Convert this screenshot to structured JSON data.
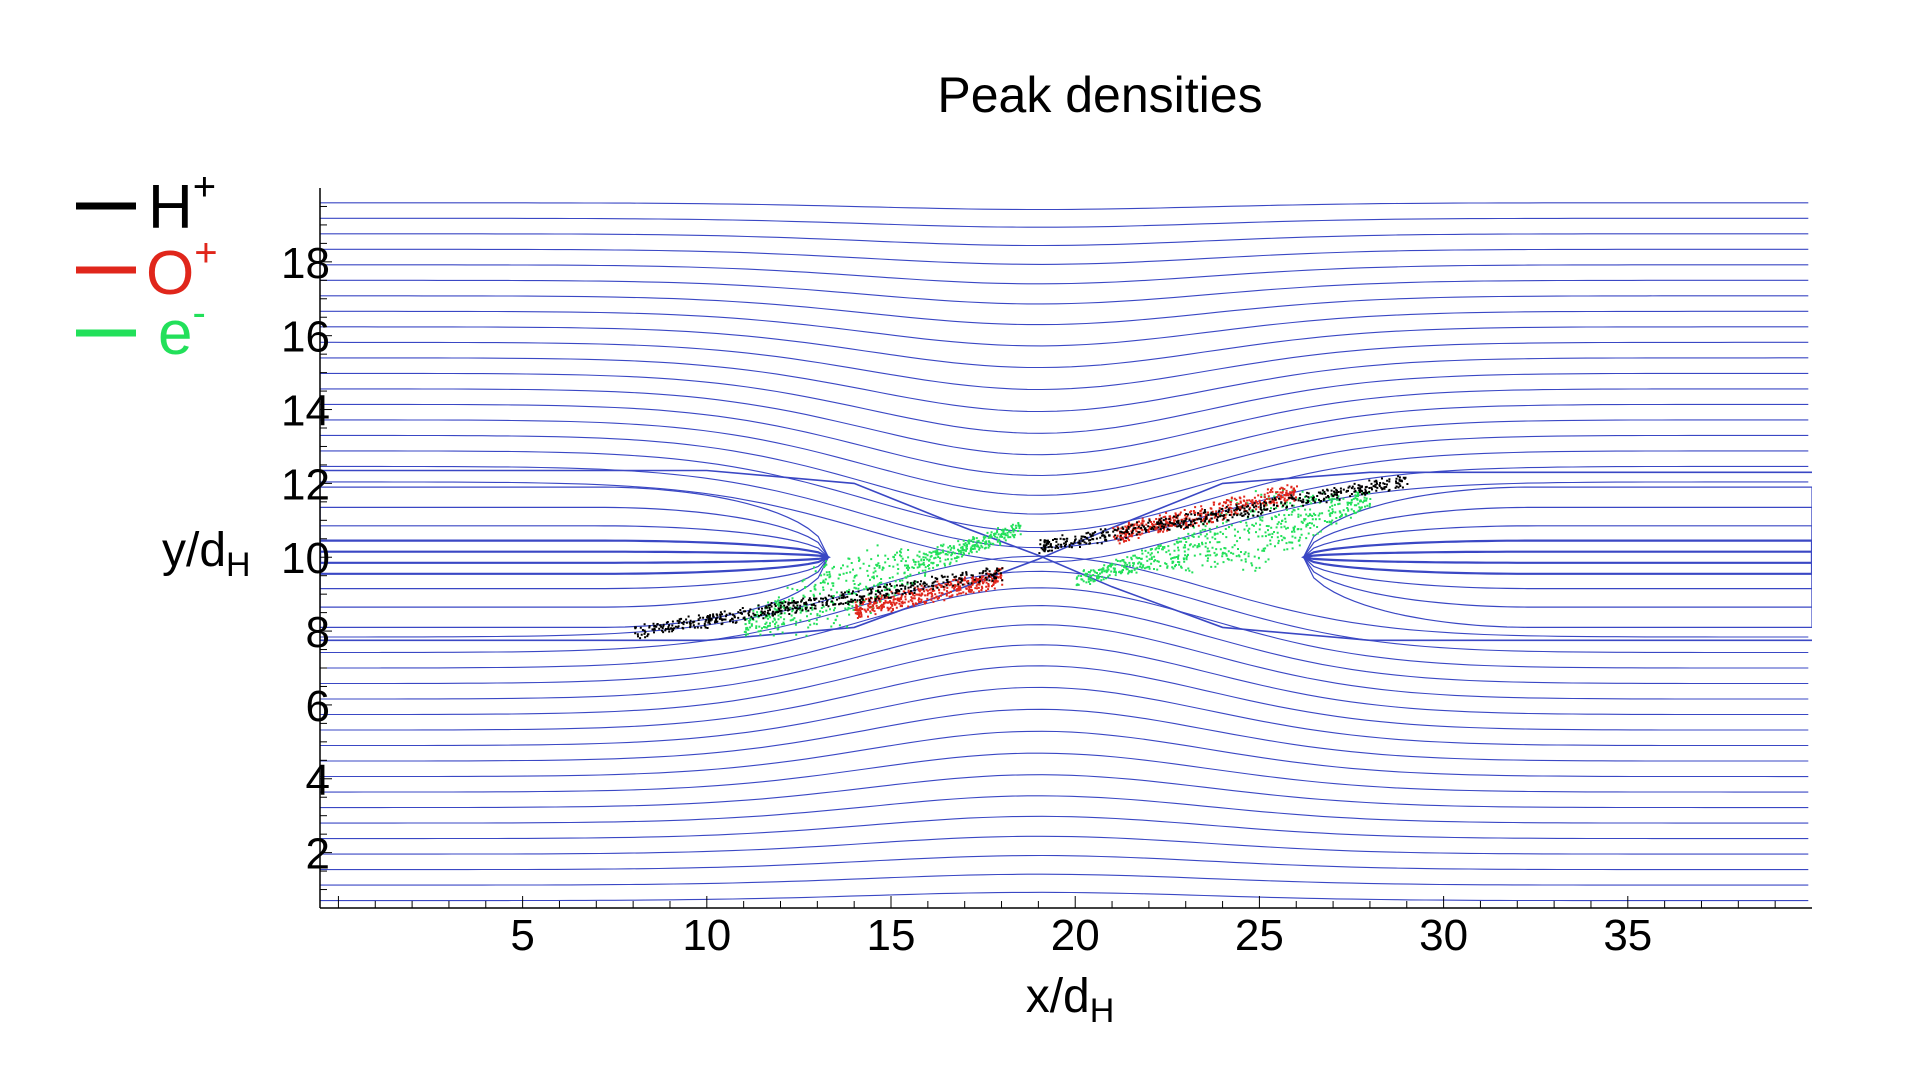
{
  "chart_data": {
    "type": "scatter",
    "title": "Peak densities",
    "xlabel": {
      "main": "x/d",
      "sub": "H"
    },
    "ylabel": {
      "main": "y/d",
      "sub": "H"
    },
    "xlim": [
      -0.5,
      40
    ],
    "ylim": [
      0.5,
      20
    ],
    "xticks": [
      5,
      10,
      15,
      20,
      25,
      30,
      35
    ],
    "yticks": [
      2,
      4,
      6,
      8,
      10,
      12,
      14,
      16,
      18
    ],
    "grid": false,
    "legend_position": "top-left",
    "background_field": {
      "description_type": "field lines",
      "color": "#3a47c4",
      "x_point": [
        19,
        10
      ]
    },
    "series": [
      {
        "name": "H",
        "sup": "+",
        "color": "#000000",
        "bands": [
          {
            "x": [
              8,
              18
            ],
            "y": [
              8.0,
              9.6
            ]
          },
          {
            "x": [
              19,
              29
            ],
            "y": [
              10.3,
              12.1
            ]
          }
        ]
      },
      {
        "name": "O",
        "sup": "+",
        "color": "#e0261b",
        "bands": [
          {
            "x": [
              14,
              18
            ],
            "y": [
              8.6,
              9.5
            ]
          },
          {
            "x": [
              21,
              26
            ],
            "y": [
              10.6,
              11.8
            ]
          }
        ]
      },
      {
        "name": "e",
        "sup": "-",
        "color": "#22e05a",
        "bands": [
          {
            "x": [
              11,
              18.5
            ],
            "y": [
              8.2,
              10.8
            ]
          },
          {
            "x": [
              20,
              28
            ],
            "y": [
              9.4,
              11.6
            ]
          }
        ]
      }
    ]
  }
}
